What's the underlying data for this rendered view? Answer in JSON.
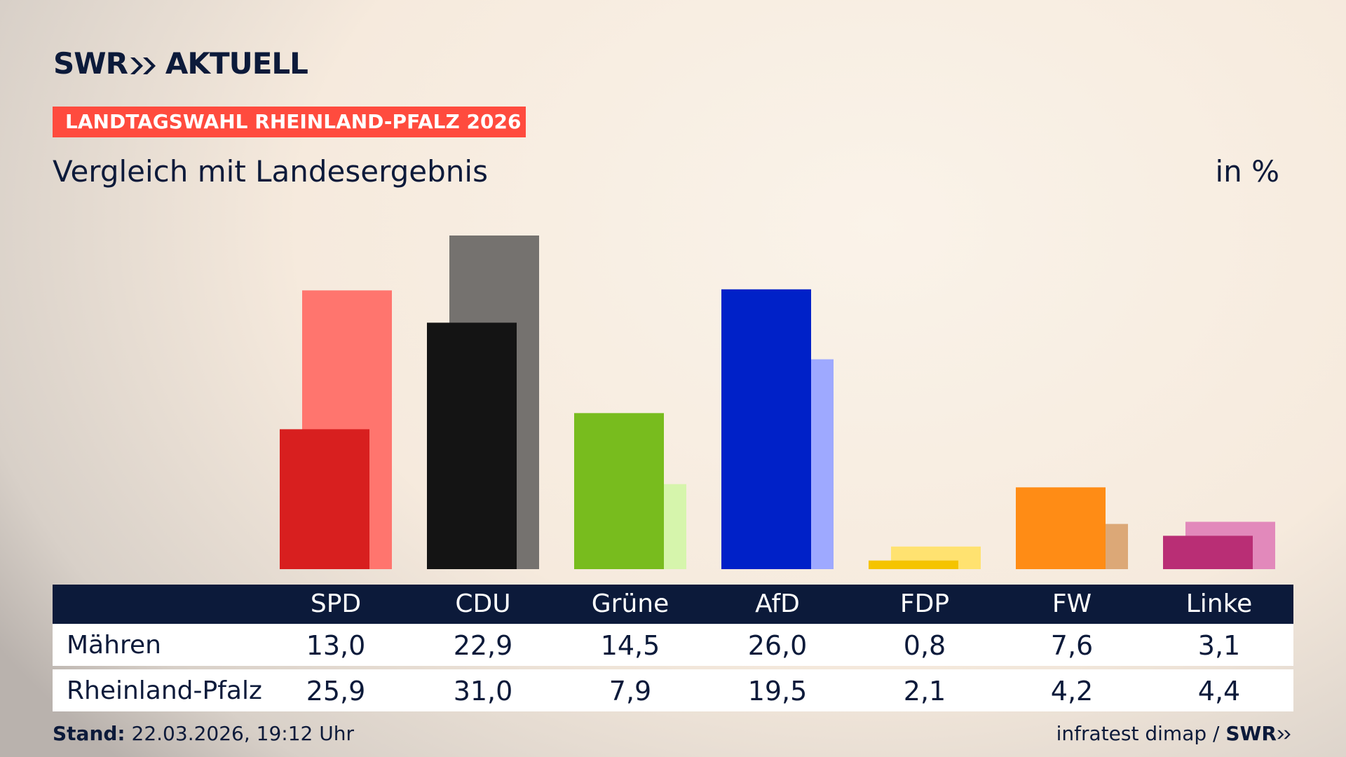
{
  "header": {
    "brand": "SWR",
    "brand_suffix": "AKTUELL",
    "kicker": "LANDTAGSWAHL RHEINLAND-PFALZ 2026",
    "subtitle": "Vergleich mit Landesergebnis",
    "unit": "in %"
  },
  "chart_data": {
    "type": "bar",
    "categories": [
      "SPD",
      "CDU",
      "Grüne",
      "AfD",
      "FDP",
      "FW",
      "Linke"
    ],
    "series": [
      {
        "name": "Mähren",
        "values": [
          13.0,
          22.9,
          14.5,
          26.0,
          0.8,
          7.6,
          3.1
        ],
        "colors": [
          "#d81f1f",
          "#141414",
          "#78bc1e",
          "#0021c8",
          "#f5c400",
          "#ff8c15",
          "#b92e75"
        ]
      },
      {
        "name": "Rheinland-Pfalz",
        "values": [
          25.9,
          31.0,
          7.9,
          19.5,
          2.1,
          4.2,
          4.4
        ],
        "colors": [
          "#ff756e",
          "#75726f",
          "#d6f5ac",
          "#9ea9ff",
          "#ffe270",
          "#dca877",
          "#e289bb"
        ]
      }
    ],
    "ylim": [
      0,
      31
    ],
    "grid": false,
    "legend": "table-below"
  },
  "table": {
    "headers": [
      "SPD",
      "CDU",
      "Grüne",
      "AfD",
      "FDP",
      "FW",
      "Linke"
    ],
    "rows": [
      {
        "label": "Mähren",
        "values": [
          "13,0",
          "22,9",
          "14,5",
          "26,0",
          "0,8",
          "7,6",
          "3,1"
        ]
      },
      {
        "label": "Rheinland-Pfalz",
        "values": [
          "25,9",
          "31,0",
          "7,9",
          "19,5",
          "2,1",
          "4,2",
          "4,4"
        ]
      }
    ]
  },
  "footer": {
    "stand_label": "Stand:",
    "stand_value": "22.03.2026, 19:12 Uhr",
    "source": "infratest dimap /",
    "source_brand": "SWR"
  }
}
